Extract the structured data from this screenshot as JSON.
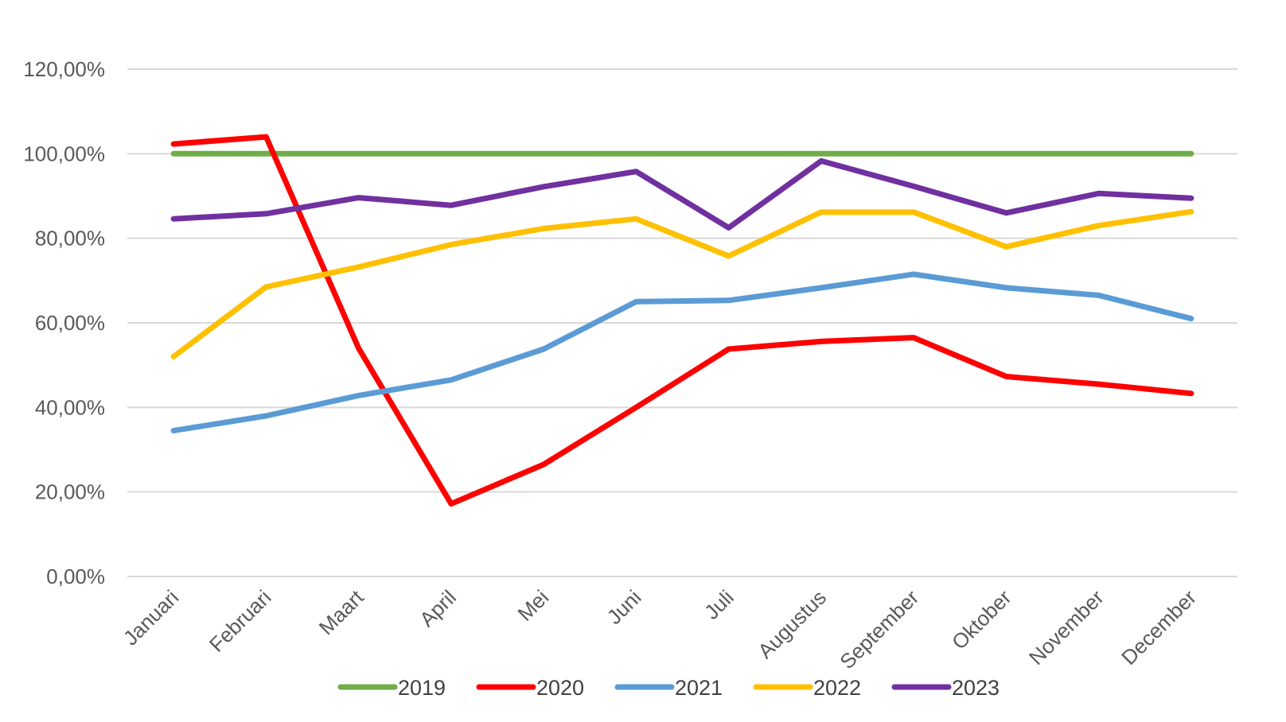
{
  "chart_data": {
    "type": "line",
    "title": "",
    "xlabel": "",
    "ylabel": "",
    "categories": [
      "Januari",
      "Februari",
      "Maart",
      "April",
      "Mei",
      "Juni",
      "Juli",
      "Augustus",
      "September",
      "Oktober",
      "November",
      "December"
    ],
    "yticks": [
      "0,00%",
      "20,00%",
      "40,00%",
      "60,00%",
      "80,00%",
      "100,00%",
      "120,00%"
    ],
    "ylim": [
      0,
      120
    ],
    "grid": true,
    "legend_position": "bottom",
    "series": [
      {
        "name": "2019",
        "color": "#70ad47",
        "values": [
          100,
          100,
          100,
          100,
          100,
          100,
          100,
          100,
          100,
          100,
          100,
          100
        ]
      },
      {
        "name": "2020",
        "color": "#ff0000",
        "values": [
          102.3,
          104.0,
          54.0,
          17.2,
          26.5,
          40.0,
          53.8,
          55.6,
          56.5,
          47.3,
          45.5,
          43.3
        ]
      },
      {
        "name": "2021",
        "color": "#5b9bd5",
        "values": [
          34.5,
          38.0,
          42.8,
          46.5,
          53.8,
          65.0,
          65.3,
          68.3,
          71.5,
          68.3,
          66.5,
          61.0
        ]
      },
      {
        "name": "2022",
        "color": "#ffc000",
        "values": [
          52.0,
          68.5,
          73.2,
          78.5,
          82.3,
          84.6,
          75.8,
          86.2,
          86.2,
          78.0,
          83.0,
          86.3
        ]
      },
      {
        "name": "2023",
        "color": "#7030a0",
        "values": [
          84.6,
          85.8,
          89.6,
          87.8,
          92.2,
          95.8,
          82.5,
          98.3,
          92.3,
          86.0,
          90.6,
          89.5
        ]
      }
    ]
  }
}
